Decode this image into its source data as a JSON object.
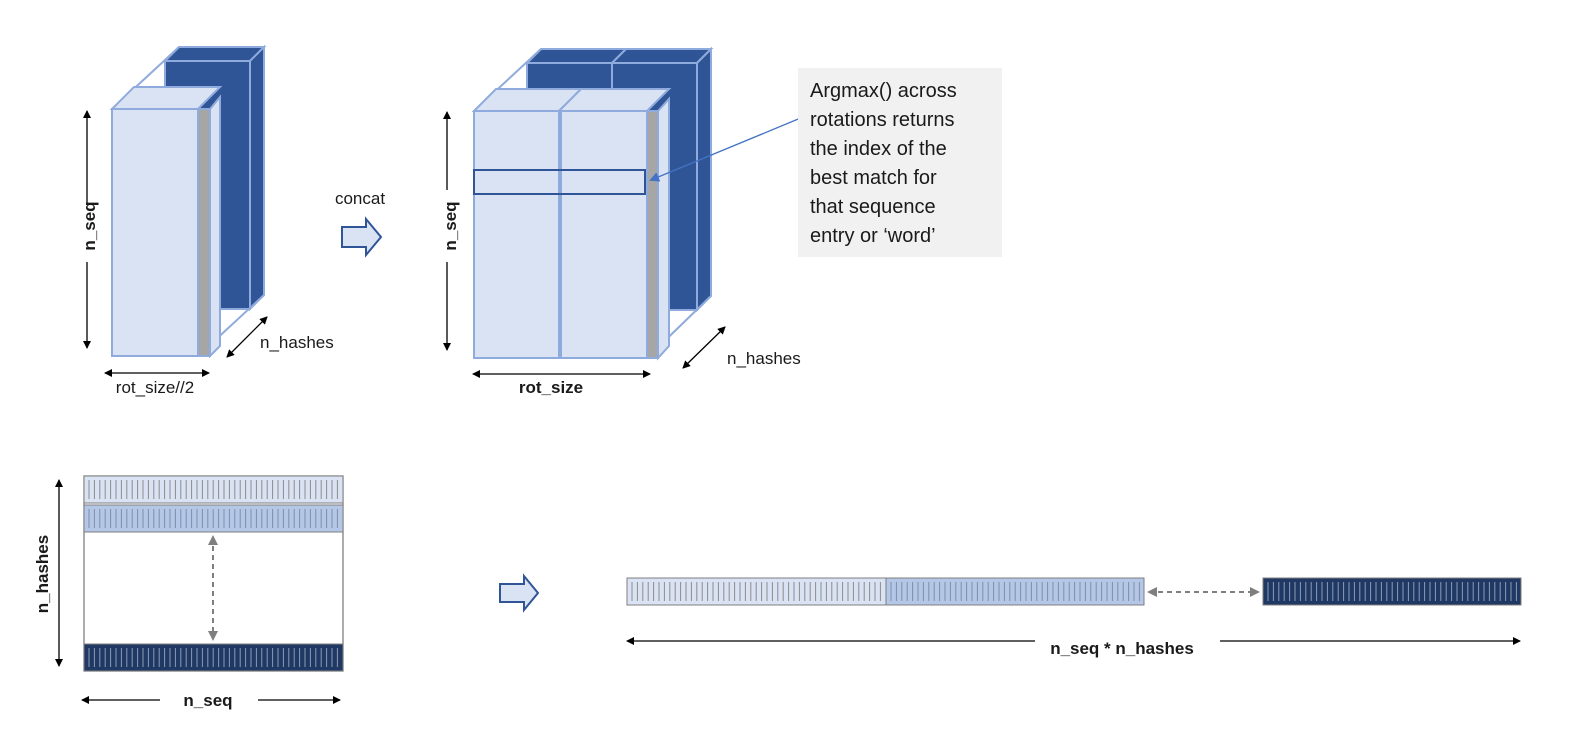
{
  "labels": {
    "n_seq_left": "n_seq",
    "n_hashes_left": "n_hashes",
    "rot_size_half": "rot_size//2",
    "concat": "concat",
    "n_seq_right": "n_seq",
    "n_hashes_right": "n_hashes",
    "rot_size": "rot_size",
    "n_hashes_bottom": "n_hashes",
    "n_seq_bottom": "n_seq",
    "n_seq_times_n_hashes": "n_seq * n_hashes"
  },
  "annotation": {
    "text": "Argmax() across\nrotations  returns\nthe index of the\nbest match for\nthat sequence\nentry or ‘word’"
  },
  "colors": {
    "light_face": "#dae3f3",
    "light_stroke": "#8faadc",
    "dark_face": "#2f5597",
    "mid_band": "#b4c7e7",
    "navy_band": "#203864",
    "gray_side": "#a6a6a6",
    "box_outline": "#2f5597",
    "annotation_bg": "#f1f1f1"
  }
}
